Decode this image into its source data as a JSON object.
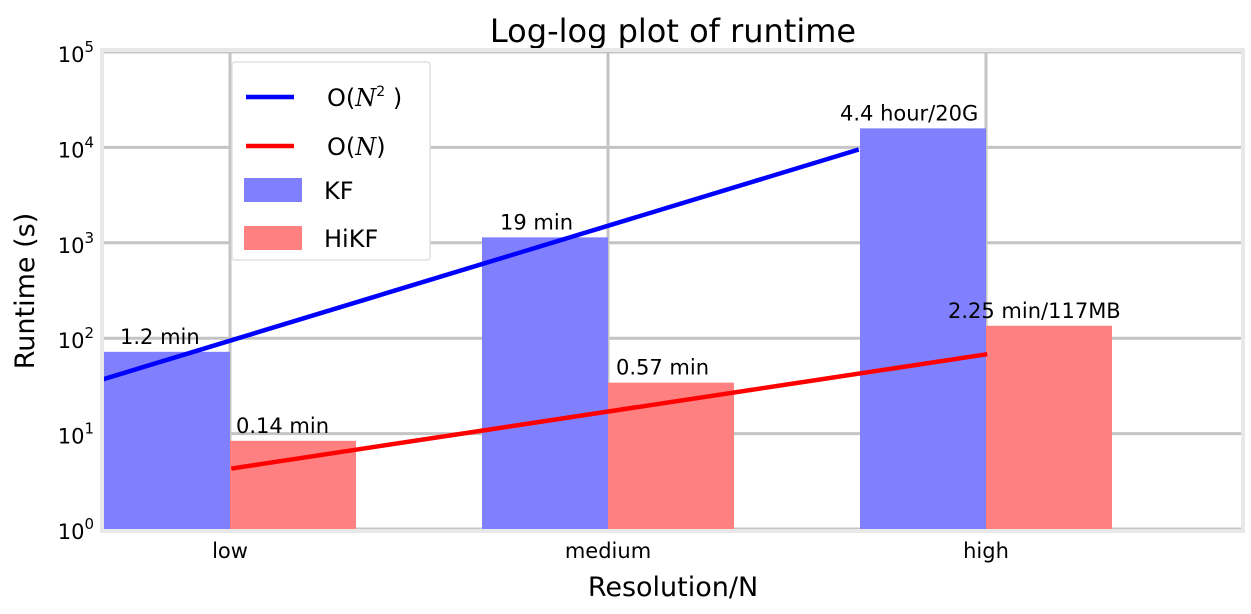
{
  "chart_data": {
    "type": "bar",
    "title": "Log-log plot of runtime",
    "xlabel": "Resolution/N",
    "ylabel": "Runtime (s)",
    "categories": [
      "low",
      "medium",
      "high"
    ],
    "yscale": "log",
    "ylim": [
      1,
      100000
    ],
    "yticks": [
      {
        "value": 1,
        "label": "10^0"
      },
      {
        "value": 10,
        "label": "10^1"
      },
      {
        "value": 100,
        "label": "10^2"
      },
      {
        "value": 1000,
        "label": "10^3"
      },
      {
        "value": 10000,
        "label": "10^4"
      },
      {
        "value": 100000,
        "label": "10^5"
      }
    ],
    "grid": true,
    "legend_position": "top-left",
    "series": [
      {
        "name": "KF",
        "kind": "bar",
        "color": "#8080ff",
        "values": [
          72,
          1140,
          15840
        ],
        "labels": [
          "1.2 min",
          "19 min",
          "4.4 hour/20G"
        ]
      },
      {
        "name": "HiKF",
        "kind": "bar",
        "color": "#ff8080",
        "values": [
          8.4,
          34.2,
          135
        ],
        "labels": [
          "0.14 min",
          "0.57 min",
          "2.25 min/117MB"
        ]
      }
    ],
    "lines": [
      {
        "name": "O(N^2 )",
        "color": "#0000ff",
        "points": [
          [
            -0.17,
            37
          ],
          [
            1.83,
            9500
          ]
        ]
      },
      {
        "name": "O(N)",
        "color": "#ff0000",
        "points": [
          [
            0.17,
            4.3
          ],
          [
            2.17,
            68
          ]
        ]
      }
    ]
  }
}
